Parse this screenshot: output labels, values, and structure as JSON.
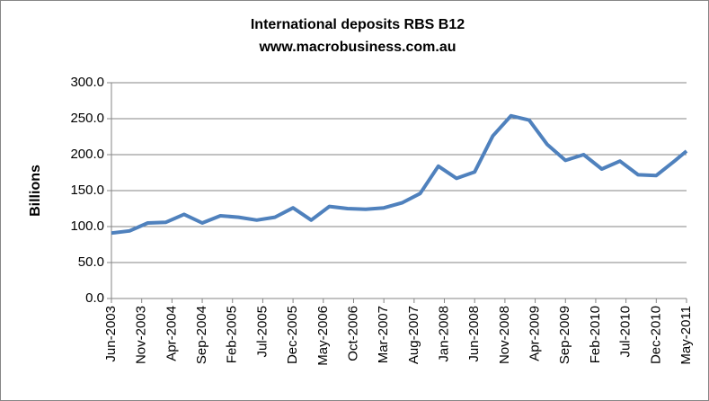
{
  "chart_data": {
    "type": "line",
    "title": "International deposits RBS B12",
    "subtitle": "www.macrobusiness.com.au",
    "y_label": "Billions",
    "x": [
      "2003-06",
      "2003-09",
      "2003-12",
      "2004-03",
      "2004-06",
      "2004-09",
      "2004-12",
      "2005-03",
      "2005-06",
      "2005-09",
      "2005-12",
      "2006-03",
      "2006-06",
      "2006-09",
      "2006-12",
      "2007-03",
      "2007-06",
      "2007-09",
      "2007-12",
      "2008-03",
      "2008-06",
      "2008-09",
      "2008-12",
      "2009-03",
      "2009-06",
      "2009-09",
      "2009-12",
      "2010-03",
      "2010-06",
      "2010-09",
      "2010-12",
      "2011-03",
      "2011-05"
    ],
    "series": [
      {
        "name": "International deposits",
        "color": "#4f81bd",
        "values": [
          91,
          94,
          105,
          106,
          117,
          105,
          115,
          113,
          109,
          113,
          126,
          109,
          128,
          125,
          124,
          126,
          133,
          146,
          184,
          167,
          176,
          226,
          254,
          248,
          214,
          192,
          200,
          180,
          191,
          172,
          171,
          191,
          205
        ]
      }
    ],
    "xlim": [
      "2003-06",
      "2011-05"
    ],
    "xticks": [
      {
        "value": "2003-06",
        "label": "Jun-2003"
      },
      {
        "value": "2003-11",
        "label": "Nov-2003"
      },
      {
        "value": "2004-04",
        "label": "Apr-2004"
      },
      {
        "value": "2004-09",
        "label": "Sep-2004"
      },
      {
        "value": "2005-02",
        "label": "Feb-2005"
      },
      {
        "value": "2005-07",
        "label": "Jul-2005"
      },
      {
        "value": "2005-12",
        "label": "Dec-2005"
      },
      {
        "value": "2006-05",
        "label": "May-2006"
      },
      {
        "value": "2006-10",
        "label": "Oct-2006"
      },
      {
        "value": "2007-03",
        "label": "Mar-2007"
      },
      {
        "value": "2007-08",
        "label": "Aug-2007"
      },
      {
        "value": "2008-01",
        "label": "Jan-2008"
      },
      {
        "value": "2008-06",
        "label": "Jun-2008"
      },
      {
        "value": "2008-11",
        "label": "Nov-2008"
      },
      {
        "value": "2009-04",
        "label": "Apr-2009"
      },
      {
        "value": "2009-09",
        "label": "Sep-2009"
      },
      {
        "value": "2010-02",
        "label": "Feb-2010"
      },
      {
        "value": "2010-07",
        "label": "Jul-2010"
      },
      {
        "value": "2010-12",
        "label": "Dec-2010"
      },
      {
        "value": "2011-05",
        "label": "May-2011"
      }
    ],
    "ylim": [
      0,
      300
    ],
    "yticks": [
      {
        "value": 0,
        "label": "0.0"
      },
      {
        "value": 50,
        "label": "50.0"
      },
      {
        "value": 100,
        "label": "100.0"
      },
      {
        "value": 150,
        "label": "150.0"
      },
      {
        "value": 200,
        "label": "200.0"
      },
      {
        "value": 250,
        "label": "250.0"
      },
      {
        "value": 300,
        "label": "300.0"
      }
    ],
    "grid": true
  }
}
